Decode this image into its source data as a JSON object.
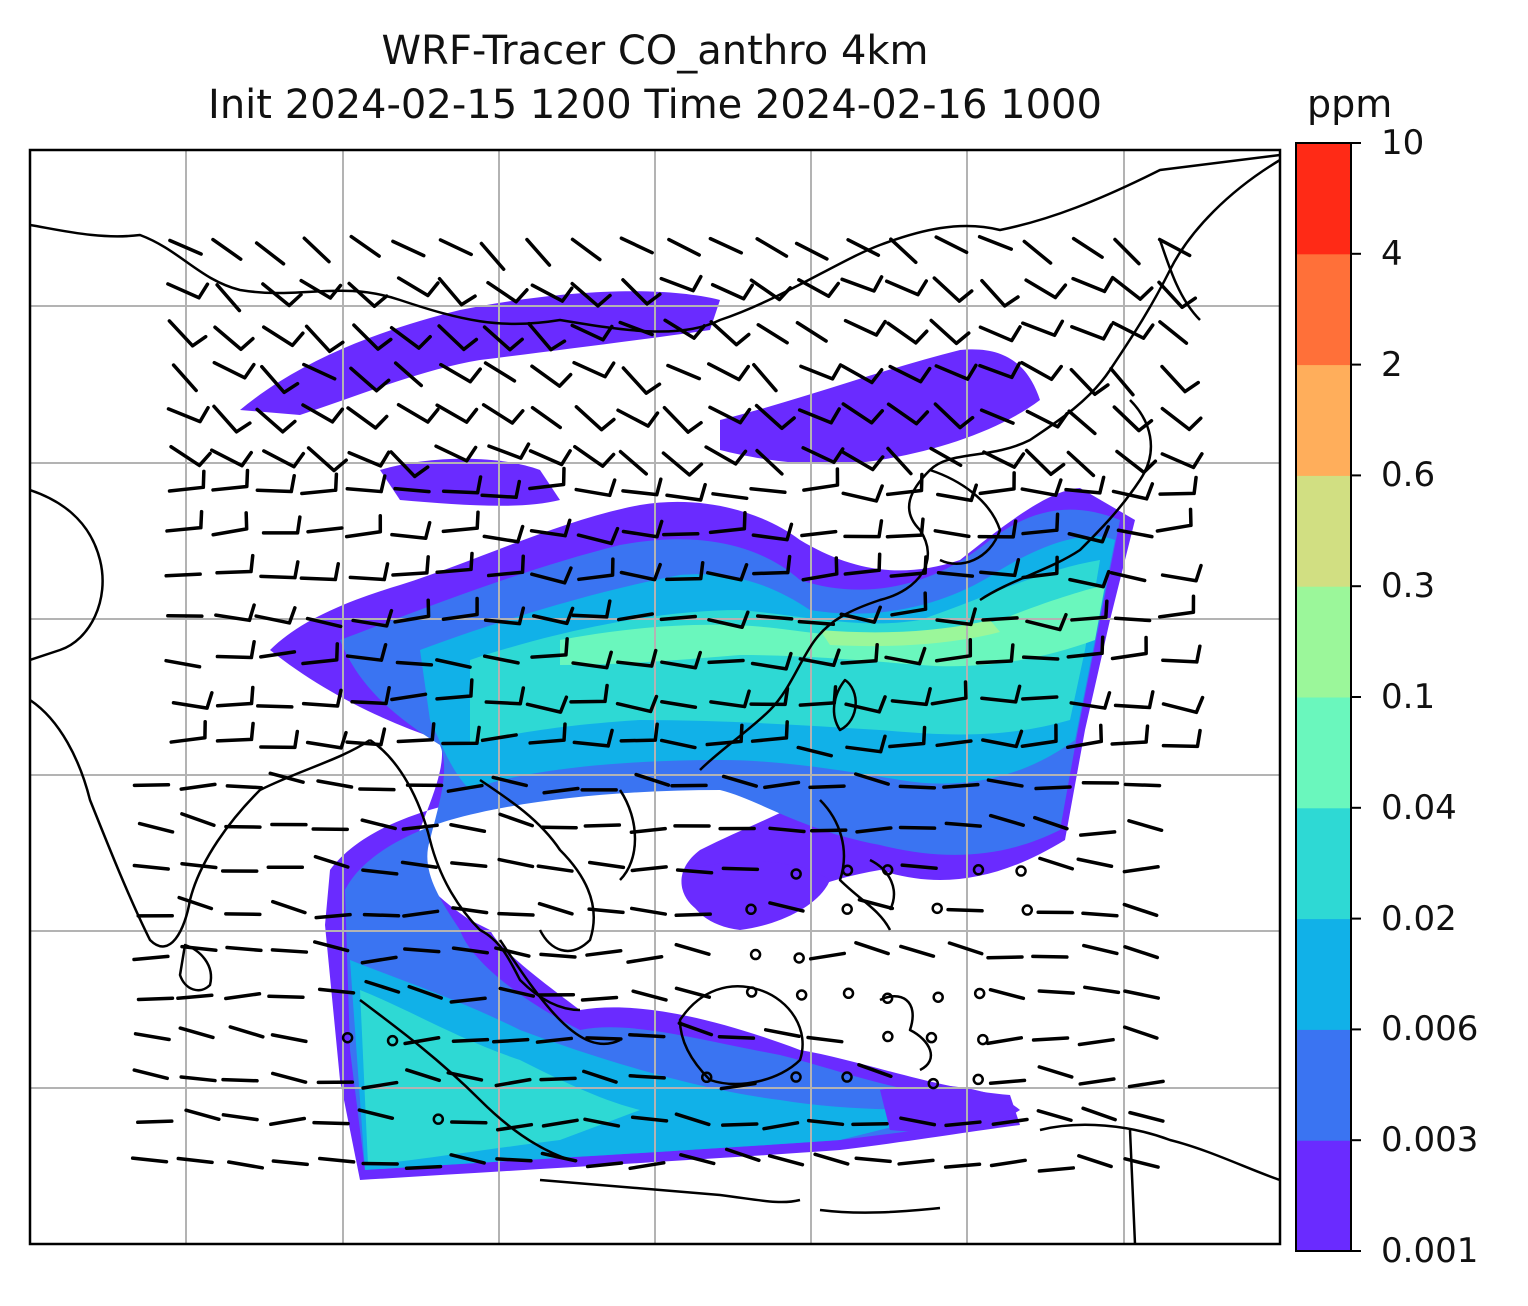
{
  "title": {
    "line1": "WRF-Tracer CO_anthro 4km",
    "line2": "Init 2024-02-15 1200 Time 2024-02-16 1000"
  },
  "colorbar": {
    "unit": "ppm",
    "ticks": [
      "0.001",
      "0.003",
      "0.006",
      "0.02",
      "0.04",
      "0.1",
      "0.3",
      "0.6",
      "2",
      "4",
      "10"
    ],
    "colors": [
      "#6a2bff",
      "#3a74f2",
      "#11b1e8",
      "#2ed9d4",
      "#6af7bd",
      "#9bf79a",
      "#d1df82",
      "#ffae5b",
      "#ff7039",
      "#ff2a16"
    ]
  },
  "map": {
    "grid": "on",
    "coastline_color": "#000000",
    "barb_color": "#000000"
  }
}
